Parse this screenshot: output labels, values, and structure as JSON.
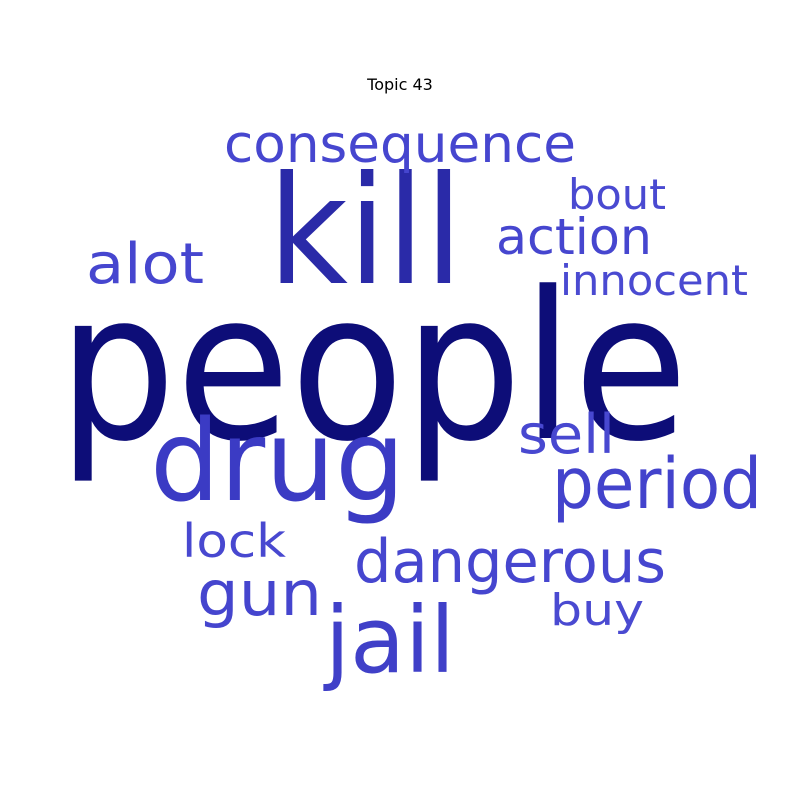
{
  "chart_data": {
    "type": "wordcloud",
    "title": "Topic 43",
    "words": [
      {
        "text": "people",
        "weight": 1.0,
        "color": "#0d0d78"
      },
      {
        "text": "kill",
        "weight": 0.72,
        "color": "#2a2aa8"
      },
      {
        "text": "drug",
        "weight": 0.64,
        "color": "#3b3bc4"
      },
      {
        "text": "jail",
        "weight": 0.55,
        "color": "#4040c8"
      },
      {
        "text": "period",
        "weight": 0.42,
        "color": "#4343cc"
      },
      {
        "text": "consequence",
        "weight": 0.34,
        "color": "#4646cf"
      },
      {
        "text": "dangerous",
        "weight": 0.4,
        "color": "#4646cf"
      },
      {
        "text": "gun",
        "weight": 0.4,
        "color": "#4545ce"
      },
      {
        "text": "alot",
        "weight": 0.37,
        "color": "#4646cf"
      },
      {
        "text": "action",
        "weight": 0.33,
        "color": "#4646cf"
      },
      {
        "text": "sell",
        "weight": 0.34,
        "color": "#4848d0"
      },
      {
        "text": "lock",
        "weight": 0.29,
        "color": "#4848d0"
      },
      {
        "text": "bout",
        "weight": 0.27,
        "color": "#4a4ad1"
      },
      {
        "text": "innocent",
        "weight": 0.27,
        "color": "#4a4ad1"
      },
      {
        "text": "buy",
        "weight": 0.29,
        "color": "#4a4ad1"
      }
    ]
  }
}
